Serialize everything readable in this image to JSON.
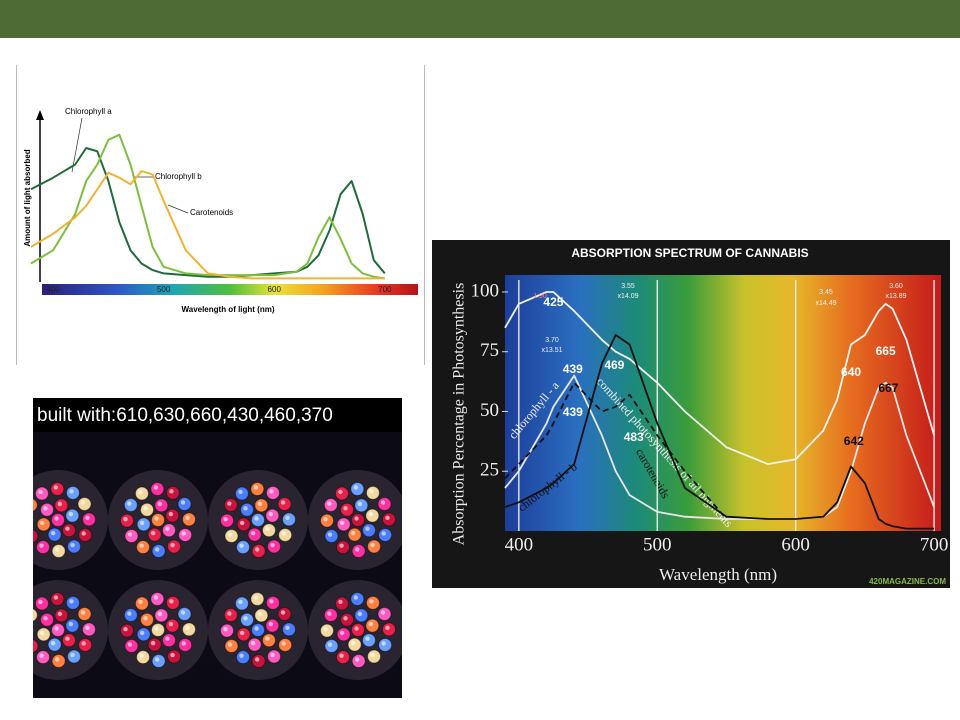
{
  "chart_data": [
    {
      "type": "line",
      "x_label": "Wavelength of light (nm)",
      "y_label": "Amount of light absorbed",
      "x": [
        380,
        400,
        420,
        430,
        440,
        450,
        460,
        470,
        480,
        490,
        500,
        520,
        540,
        560,
        580,
        600,
        620,
        630,
        640,
        650,
        660,
        670,
        680,
        690,
        700
      ],
      "xlim": [
        390,
        730
      ],
      "ylim": [
        0,
        100
      ],
      "xticks": [
        400,
        500,
        600,
        700
      ],
      "series": [
        {
          "name": "Chlorophyll a",
          "color": "#1f6b3a",
          "values": [
            55,
            62,
            70,
            80,
            78,
            60,
            35,
            18,
            10,
            6,
            4,
            3,
            2,
            2,
            3,
            4,
            5,
            8,
            15,
            30,
            52,
            60,
            40,
            12,
            4
          ]
        },
        {
          "name": "Chlorophyll b",
          "color": "#7cbf3f",
          "values": [
            10,
            18,
            40,
            60,
            70,
            85,
            88,
            70,
            45,
            20,
            8,
            4,
            3,
            3,
            3,
            3,
            5,
            10,
            26,
            38,
            25,
            10,
            4,
            2,
            1
          ]
        },
        {
          "name": "Carotenoids",
          "color": "#f2b233",
          "values": [
            20,
            28,
            38,
            45,
            55,
            65,
            62,
            58,
            66,
            64,
            48,
            18,
            4,
            2,
            1,
            1,
            1,
            1,
            1,
            1,
            1,
            1,
            1,
            1,
            1
          ]
        }
      ]
    },
    {
      "type": "line",
      "title": "ABSORPTION SPECTRUM OF CANNABIS",
      "x_label": "Wavelength (nm)",
      "y_label": "Absorption Percentage in Photosynthesis",
      "watermark": "420MAGAZINE.COM",
      "x": [
        390,
        400,
        420,
        425,
        440,
        460,
        470,
        480,
        500,
        520,
        550,
        580,
        600,
        620,
        630,
        640,
        650,
        660,
        665,
        670,
        680,
        700
      ],
      "xlim": [
        390,
        705
      ],
      "ylim": [
        0,
        105
      ],
      "xticks": [
        400,
        500,
        600,
        700
      ],
      "yticks": [
        25,
        50,
        75,
        100
      ],
      "series": [
        {
          "name": "combined photosynthesis of all pigments",
          "color": "#f2f2f2",
          "values": [
            85,
            95,
            100,
            100,
            92,
            80,
            75,
            72,
            62,
            50,
            35,
            28,
            30,
            42,
            55,
            78,
            82,
            92,
            95,
            93,
            80,
            40
          ]
        },
        {
          "name": "chlorophyll - a",
          "color": "#e8e8e8",
          "values": [
            18,
            25,
            45,
            52,
            65,
            40,
            25,
            15,
            8,
            6,
            5,
            5,
            5,
            6,
            10,
            25,
            45,
            60,
            62,
            60,
            40,
            10
          ]
        },
        {
          "name": "chlorophyll - b",
          "color": "#111111",
          "values": [
            10,
            12,
            18,
            20,
            28,
            70,
            82,
            78,
            45,
            18,
            6,
            5,
            5,
            6,
            12,
            27,
            20,
            5,
            3,
            2,
            1,
            1
          ]
        },
        {
          "name": "carotenoids",
          "color": "#111111",
          "dashed": true,
          "values": [
            22,
            28,
            40,
            45,
            62,
            50,
            52,
            57,
            40,
            25,
            5,
            null,
            null,
            null,
            null,
            null,
            null,
            null,
            null,
            null,
            null,
            null
          ]
        }
      ],
      "peak_labels": [
        425,
        439,
        439,
        469,
        483,
        640,
        665,
        642,
        667
      ],
      "measure_labels": [
        "1.90",
        "3.70",
        "x13.51",
        "3.55",
        "x14.09",
        "3.45",
        "x14.49",
        "3.60",
        "x13.89"
      ]
    }
  ],
  "photo": {
    "caption": "built with:610,630,660,430,460,370"
  }
}
